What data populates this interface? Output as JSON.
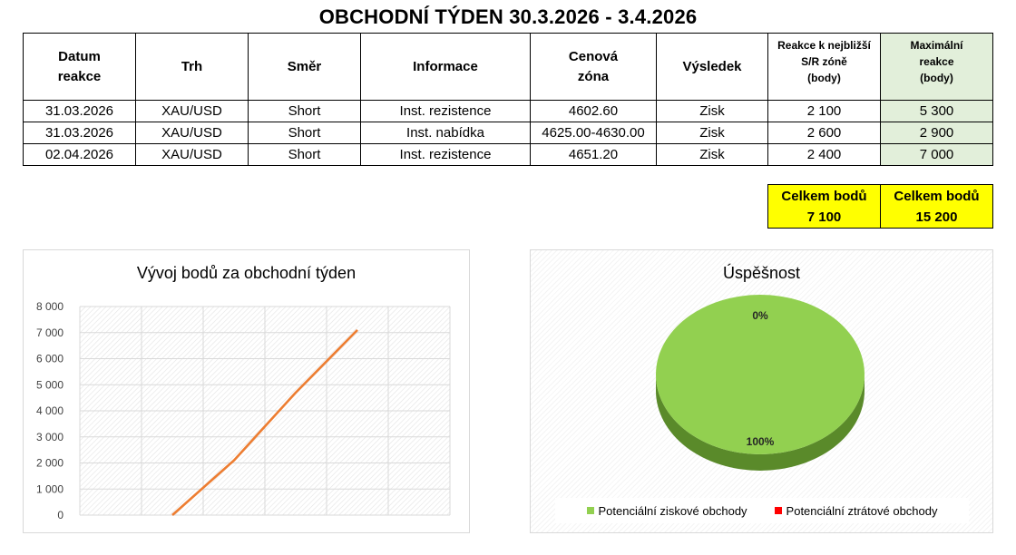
{
  "title": "OBCHODNÍ TÝDEN 30.3.2026 - 3.4.2026",
  "table": {
    "headers": {
      "date_l1": "Datum",
      "date_l2": "reakce",
      "market": "Trh",
      "direction": "Směr",
      "info": "Informace",
      "zone_l1": "Cenová",
      "zone_l2": "zóna",
      "result": "Výsledek",
      "reaction_l1": "Reakce k nejbližší",
      "reaction_l2": "S/R zóně",
      "reaction_l3": "(body)",
      "max_l1": "Maximální",
      "max_l2": "reakce",
      "max_l3": "(body)"
    },
    "rows": [
      {
        "date": "31.03.2026",
        "market": "XAU/USD",
        "direction": "Short",
        "info": "Inst. rezistence",
        "zone": "4602.60",
        "result": "Zisk",
        "reaction": "2 100",
        "max": "5 300"
      },
      {
        "date": "31.03.2026",
        "market": "XAU/USD",
        "direction": "Short",
        "info": "Inst. nabídka",
        "zone": "4625.00-4630.00",
        "result": "Zisk",
        "reaction": "2 600",
        "max": "2 900"
      },
      {
        "date": "02.04.2026",
        "market": "XAU/USD",
        "direction": "Short",
        "info": "Inst. rezistence",
        "zone": "4651.20",
        "result": "Zisk",
        "reaction": "2 400",
        "max": "7 000"
      }
    ]
  },
  "totals": {
    "label1": "Celkem bodů",
    "value1": "7 100",
    "label2": "Celkem bodů",
    "value2": "15 200"
  },
  "colors": {
    "line": "#ed7d31",
    "pie_profit": "#92d050",
    "pie_profit_side": "#5a8a2a",
    "pie_loss": "#ff0000",
    "max_cell": "#e2efda",
    "totals_bg": "#ffff00"
  },
  "chart_data": [
    {
      "type": "line",
      "title": "Vývoj bodů za obchodní týden",
      "xlabel": "",
      "ylabel": "",
      "x": [
        1,
        2,
        3,
        4,
        5,
        6
      ],
      "series": [
        {
          "values": [
            null,
            0,
            2100,
            4700,
            7100,
            null
          ]
        }
      ],
      "ylim": [
        0,
        8000
      ],
      "yticks": [
        0,
        1000,
        2000,
        3000,
        4000,
        5000,
        6000,
        7000,
        8000
      ],
      "ytick_labels": [
        "0",
        "1 000",
        "2 000",
        "3 000",
        "4 000",
        "5 000",
        "6 000",
        "7 000",
        "8 000"
      ],
      "grid": true,
      "legend": "none"
    },
    {
      "type": "pie",
      "title": "Úspěšnost",
      "categories": [
        "Potenciální ziskové obchody",
        "Potenciální ztrátové obchody"
      ],
      "values": [
        100,
        0
      ],
      "labels": [
        "100%",
        "0%"
      ],
      "style": "3d",
      "legend": "bottom"
    }
  ]
}
